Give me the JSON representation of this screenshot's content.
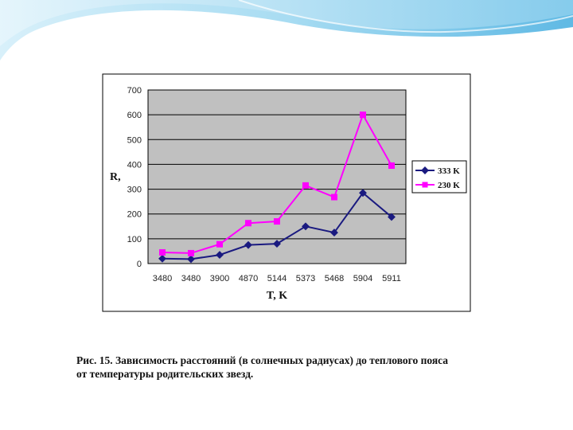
{
  "colors": {
    "plot_bg": "#c0c0c0",
    "series_1": "#1a1a80",
    "series_2": "#ff00ff",
    "banner_light": "#bfe6f6",
    "banner_dark": "#3aa6d8"
  },
  "caption": {
    "line1": "Рис. 15. Зависимость расстояний (в солнечных радиусах) до теплового пояса",
    "line2": "от температуры родительских звезд."
  },
  "chart_data": {
    "type": "line",
    "categories": [
      "3480",
      "3480",
      "3900",
      "4870",
      "5144",
      "5373",
      "5468",
      "5904",
      "5911"
    ],
    "series": [
      {
        "name": "333 K",
        "values": [
          20,
          18,
          35,
          75,
          80,
          150,
          125,
          285,
          188
        ]
      },
      {
        "name": "230 K",
        "values": [
          45,
          42,
          78,
          163,
          170,
          315,
          268,
          600,
          395
        ]
      }
    ],
    "xlabel": "T, K",
    "ylabel": "R,",
    "ylim": [
      0,
      700
    ],
    "yticks": [
      "0",
      "100",
      "200",
      "300",
      "400",
      "500",
      "600",
      "700"
    ],
    "grid": true,
    "legend": "right"
  }
}
